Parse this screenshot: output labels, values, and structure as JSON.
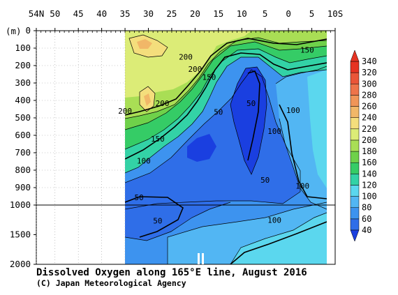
{
  "chart_data": {
    "type": "heatmap",
    "title": "Dissolved Oxygen along 165°E line, August 2016",
    "credit": "(C) Japan Meteorological Agency",
    "y_unit_label": "(m)",
    "x_tick_labels": [
      "54N",
      "50",
      "45",
      "40",
      "35",
      "30",
      "25",
      "20",
      "15",
      "10",
      "5",
      "0",
      "5",
      "10S"
    ],
    "x_tick_lats": [
      54,
      50,
      45,
      40,
      35,
      30,
      25,
      20,
      15,
      10,
      5,
      0,
      -5,
      -10
    ],
    "xlim": [
      54,
      -10
    ],
    "y_tick_labels": [
      "0",
      "100",
      "200",
      "300",
      "400",
      "500",
      "600",
      "700",
      "800",
      "900",
      "1000",
      "1500",
      "2000"
    ],
    "y_upper_ticks": [
      0,
      100,
      200,
      300,
      400,
      500,
      600,
      700,
      800,
      900,
      1000
    ],
    "y_lower_ticks": [
      1000,
      1500,
      2000
    ],
    "ylim": [
      0,
      2000
    ],
    "y_axis_break": 1000,
    "data_lat_range": [
      35,
      -8
    ],
    "contour_labels": [
      {
        "text": "150",
        "lat": -4,
        "depth": 110
      },
      {
        "text": "200",
        "lat": 22,
        "depth": 150
      },
      {
        "text": "200",
        "lat": 20,
        "depth": 220
      },
      {
        "text": "150",
        "lat": 17,
        "depth": 265
      },
      {
        "text": "200",
        "lat": 27,
        "depth": 415
      },
      {
        "text": "200",
        "lat": 35,
        "depth": 460
      },
      {
        "text": "50",
        "lat": 15,
        "depth": 465
      },
      {
        "text": "50",
        "lat": 8,
        "depth": 415
      },
      {
        "text": "100",
        "lat": -1,
        "depth": 455
      },
      {
        "text": "100",
        "lat": 3,
        "depth": 575
      },
      {
        "text": "150",
        "lat": 28,
        "depth": 620
      },
      {
        "text": "100",
        "lat": 31,
        "depth": 745
      },
      {
        "text": "50",
        "lat": 5,
        "depth": 855
      },
      {
        "text": "100",
        "lat": -3,
        "depth": 890
      },
      {
        "text": "50",
        "lat": 32,
        "depth": 955
      },
      {
        "text": "50",
        "lat": 28,
        "depth": 1265
      },
      {
        "text": "100",
        "lat": 3,
        "depth": 1250
      }
    ],
    "colorbar": {
      "levels": [
        40,
        60,
        80,
        100,
        120,
        140,
        160,
        180,
        200,
        220,
        240,
        260,
        280,
        300,
        320,
        340
      ],
      "colors": [
        "#1a3fe0",
        "#2f6ee8",
        "#3d93ef",
        "#52b6f3",
        "#5bd7ee",
        "#33d2a6",
        "#35cc66",
        "#6fd14a",
        "#a9de55",
        "#dcec77",
        "#f4de7c",
        "#f1b768",
        "#f09558",
        "#ee744a",
        "#ea5538",
        "#e63322"
      ]
    }
  }
}
